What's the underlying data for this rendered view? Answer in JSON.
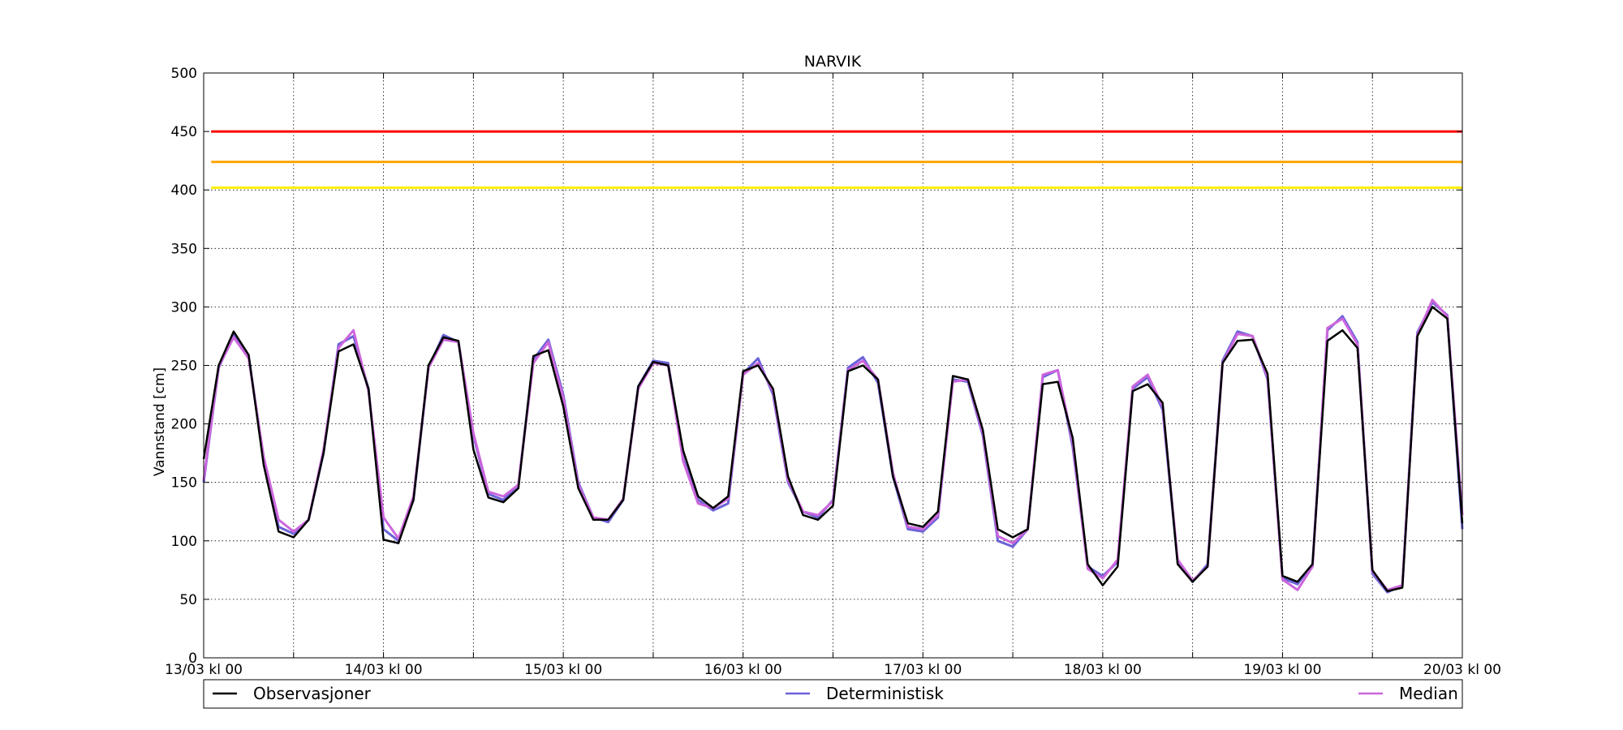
{
  "chart_data": {
    "type": "line",
    "title": "NARVIK",
    "xlabel": "",
    "ylabel": "Vannstand [cm]",
    "ylim": [
      0,
      500
    ],
    "xlim": [
      "13/03 kl 00",
      "20/03 kl 00"
    ],
    "grid": true,
    "x_tick_labels": [
      "13/03 kl 00",
      "14/03 kl 00",
      "15/03 kl 00",
      "16/03 kl 00",
      "17/03 kl 00",
      "18/03 kl 00",
      "19/03 kl 00",
      "20/03 kl 00"
    ],
    "y_ticks": [
      0,
      50,
      100,
      150,
      200,
      250,
      300,
      350,
      400,
      450,
      500
    ],
    "y_tick_labels": [
      "0",
      "50",
      "100",
      "150",
      "200",
      "250",
      "300",
      "350",
      "400",
      "450",
      "500"
    ],
    "x_unit": "hours since 13/03 kl 00",
    "legend_position": "bottom",
    "thresholds": [
      {
        "value": 450,
        "color": "#ff0000"
      },
      {
        "value": 424,
        "color": "#ffa500"
      },
      {
        "value": 402,
        "color": "#ffee00"
      }
    ],
    "series": [
      {
        "name": "Observasjoner",
        "color": "#000000",
        "x": [
          0,
          2,
          4,
          6,
          8,
          10,
          12,
          14,
          16,
          18,
          20,
          22,
          24,
          26,
          28,
          30,
          32,
          34,
          36,
          38,
          40,
          42,
          44,
          46,
          48,
          50,
          52,
          54,
          56,
          58,
          60,
          62,
          64,
          66,
          68,
          70,
          72,
          74,
          76,
          78,
          80,
          82,
          84,
          86,
          88,
          90,
          92,
          94,
          96,
          98,
          100,
          102,
          104,
          106,
          108,
          110,
          112,
          114,
          116,
          118,
          120,
          122,
          124,
          126,
          128,
          130,
          132,
          134,
          136,
          138,
          140,
          142,
          144,
          146,
          148,
          150,
          152,
          154,
          156,
          158,
          160,
          162,
          164,
          166,
          168
        ],
        "values": [
          170,
          250,
          279,
          259,
          165,
          108,
          103,
          118,
          175,
          262,
          268,
          230,
          101,
          98,
          135,
          250,
          274,
          271,
          178,
          137,
          133,
          145,
          258,
          263,
          215,
          145,
          118,
          118,
          135,
          232,
          253,
          250,
          177,
          138,
          128,
          138,
          245,
          250,
          230,
          155,
          122,
          118,
          130,
          245,
          250,
          238,
          155,
          115,
          112,
          125,
          241,
          238,
          195,
          110,
          103,
          110,
          234,
          236,
          188,
          80,
          62,
          78,
          228,
          234,
          218,
          80,
          65,
          78,
          252,
          271,
          272,
          243,
          70,
          65,
          80,
          271,
          280,
          265,
          75,
          57,
          60,
          275,
          300,
          290,
          115
        ]
      },
      {
        "name": "Deterministisk",
        "color": "#6b63d8",
        "x": [
          0,
          2,
          4,
          6,
          8,
          10,
          12,
          14,
          16,
          18,
          20,
          22,
          24,
          26,
          28,
          30,
          32,
          34,
          36,
          38,
          40,
          42,
          44,
          46,
          48,
          50,
          52,
          54,
          56,
          58,
          60,
          62,
          64,
          66,
          68,
          70,
          72,
          74,
          76,
          78,
          80,
          82,
          84,
          86,
          88,
          90,
          92,
          94,
          96,
          98,
          100,
          102,
          104,
          106,
          108,
          110,
          112,
          114,
          116,
          118,
          120,
          122,
          124,
          126,
          128,
          130,
          132,
          134,
          136,
          138,
          140,
          142,
          144,
          146,
          148,
          150,
          152,
          154,
          156,
          158,
          160,
          162,
          164,
          166,
          168
        ],
        "values": [
          150,
          248,
          276,
          258,
          170,
          112,
          106,
          118,
          175,
          268,
          275,
          230,
          110,
          100,
          135,
          248,
          276,
          270,
          190,
          140,
          135,
          148,
          255,
          272,
          225,
          150,
          120,
          116,
          135,
          232,
          254,
          252,
          170,
          135,
          126,
          132,
          243,
          256,
          225,
          150,
          125,
          120,
          135,
          248,
          257,
          235,
          155,
          110,
          108,
          120,
          238,
          236,
          190,
          100,
          95,
          110,
          240,
          246,
          180,
          78,
          70,
          82,
          230,
          240,
          212,
          82,
          65,
          80,
          254,
          279,
          275,
          238,
          68,
          63,
          80,
          280,
          292,
          270,
          72,
          56,
          62,
          278,
          304,
          293,
          110
        ]
      },
      {
        "name": "Median",
        "color": "#cc66dd",
        "x": [
          0,
          2,
          4,
          6,
          8,
          10,
          12,
          14,
          16,
          18,
          20,
          22,
          24,
          26,
          28,
          30,
          32,
          34,
          36,
          38,
          40,
          42,
          44,
          46,
          48,
          50,
          52,
          54,
          56,
          58,
          60,
          62,
          64,
          66,
          68,
          70,
          72,
          74,
          76,
          78,
          80,
          82,
          84,
          86,
          88,
          90,
          92,
          94,
          96,
          98,
          100,
          102,
          104,
          106,
          108,
          110,
          112,
          114,
          116,
          118,
          120,
          122,
          124,
          126,
          128,
          130,
          132,
          134,
          136,
          138,
          140,
          142,
          144,
          146,
          148,
          150,
          152,
          154,
          156,
          158,
          160,
          162,
          164,
          166,
          168
        ],
        "values": [
          152,
          249,
          274,
          256,
          172,
          118,
          108,
          118,
          178,
          265,
          280,
          228,
          120,
          102,
          138,
          248,
          272,
          270,
          192,
          142,
          138,
          148,
          252,
          270,
          222,
          148,
          120,
          118,
          136,
          230,
          252,
          250,
          168,
          132,
          128,
          136,
          242,
          252,
          228,
          152,
          125,
          122,
          134,
          246,
          254,
          238,
          158,
          112,
          110,
          122,
          236,
          238,
          192,
          104,
          98,
          110,
          242,
          246,
          184,
          76,
          68,
          84,
          232,
          242,
          215,
          84,
          66,
          78,
          252,
          277,
          275,
          240,
          67,
          58,
          78,
          282,
          290,
          268,
          74,
          58,
          62,
          276,
          306,
          292,
          122
        ]
      }
    ]
  }
}
